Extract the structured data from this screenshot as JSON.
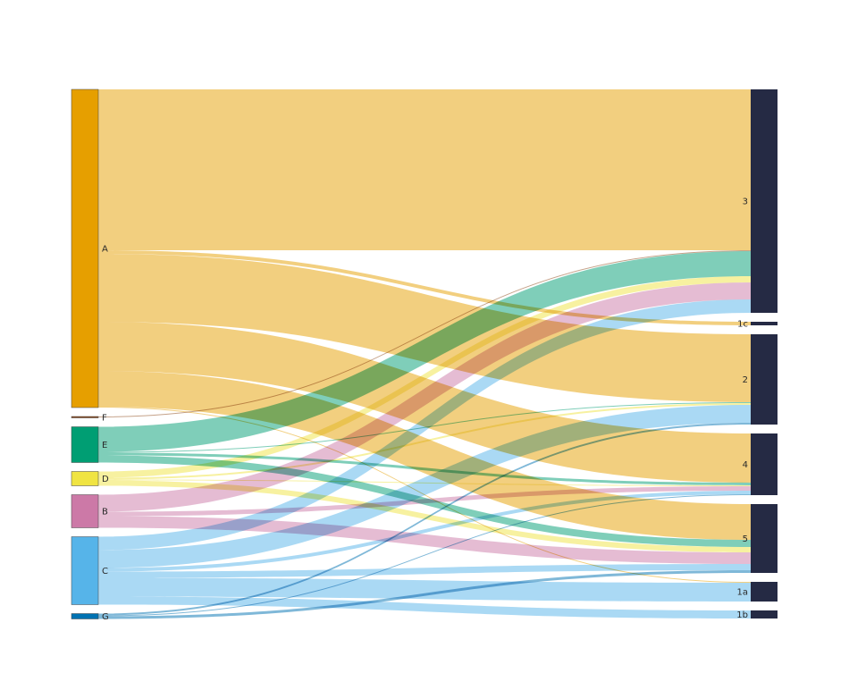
{
  "chart_data": {
    "type": "sankey",
    "title": "",
    "sources": [
      {
        "name": "A",
        "color": "#E69F00"
      },
      {
        "name": "F",
        "color": "#8B4513"
      },
      {
        "name": "E",
        "color": "#009E73"
      },
      {
        "name": "D",
        "color": "#F0E442"
      },
      {
        "name": "B",
        "color": "#CC79A7"
      },
      {
        "name": "C",
        "color": "#56B4E9"
      },
      {
        "name": "G",
        "color": "#0072B2"
      }
    ],
    "targets": [
      {
        "name": "3",
        "color": "#252A44"
      },
      {
        "name": "1c",
        "color": "#252A44"
      },
      {
        "name": "2",
        "color": "#252A44"
      },
      {
        "name": "4",
        "color": "#252A44"
      },
      {
        "name": "5",
        "color": "#252A44"
      },
      {
        "name": "1a",
        "color": "#252A44"
      },
      {
        "name": "1b",
        "color": "#252A44"
      }
    ],
    "links": [
      {
        "source": "A",
        "target": "3",
        "value": 180
      },
      {
        "source": "A",
        "target": "1c",
        "value": 4
      },
      {
        "source": "A",
        "target": "2",
        "value": 76
      },
      {
        "source": "A",
        "target": "4",
        "value": 55
      },
      {
        "source": "A",
        "target": "5",
        "value": 40
      },
      {
        "source": "A",
        "target": "1a",
        "value": 1
      },
      {
        "source": "F",
        "target": "3",
        "value": 1
      },
      {
        "source": "E",
        "target": "3",
        "value": 28
      },
      {
        "source": "E",
        "target": "2",
        "value": 1
      },
      {
        "source": "E",
        "target": "4",
        "value": 3
      },
      {
        "source": "E",
        "target": "5",
        "value": 8
      },
      {
        "source": "D",
        "target": "3",
        "value": 7
      },
      {
        "source": "D",
        "target": "2",
        "value": 2
      },
      {
        "source": "D",
        "target": "4",
        "value": 1
      },
      {
        "source": "D",
        "target": "5",
        "value": 6
      },
      {
        "source": "B",
        "target": "3",
        "value": 19
      },
      {
        "source": "B",
        "target": "4",
        "value": 5
      },
      {
        "source": "B",
        "target": "5",
        "value": 13
      },
      {
        "source": "C",
        "target": "3",
        "value": 15
      },
      {
        "source": "C",
        "target": "2",
        "value": 20
      },
      {
        "source": "C",
        "target": "4",
        "value": 4
      },
      {
        "source": "C",
        "target": "5",
        "value": 7
      },
      {
        "source": "C",
        "target": "1a",
        "value": 21
      },
      {
        "source": "C",
        "target": "1b",
        "value": 9
      },
      {
        "source": "G",
        "target": "2",
        "value": 2
      },
      {
        "source": "G",
        "target": "4",
        "value": 1
      },
      {
        "source": "G",
        "target": "5",
        "value": 3
      }
    ],
    "link_opacity": 0.5,
    "legend": "none"
  }
}
